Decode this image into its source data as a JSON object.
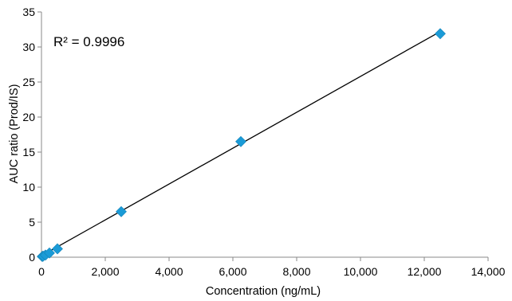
{
  "chart_data": {
    "type": "scatter",
    "title": "",
    "xlabel": "Concentration (ng/mL)",
    "ylabel": "AUC ratio (Prod/IS)",
    "xlim": [
      0,
      14000
    ],
    "ylim": [
      0,
      35
    ],
    "x_ticks": [
      0,
      2000,
      4000,
      6000,
      8000,
      10000,
      12000,
      14000
    ],
    "x_tick_labels": [
      "0",
      "2,000",
      "4,000",
      "6,000",
      "8,000",
      "10,000",
      "12,000",
      "14,000"
    ],
    "y_ticks": [
      0,
      5,
      10,
      15,
      20,
      25,
      30,
      35
    ],
    "y_tick_labels": [
      "0",
      "5",
      "10",
      "15",
      "20",
      "25",
      "30",
      "35"
    ],
    "grid": false,
    "legend": "none",
    "annotation": "R² = 0.9996",
    "marker": "diamond",
    "marker_color": "#1a9bd7",
    "trendline": {
      "type": "linear",
      "color": "#000000",
      "x_range": [
        0,
        12500
      ],
      "y_range": [
        0.2,
        32.2
      ]
    },
    "series": [
      {
        "x": [
          25,
          50,
          125,
          250,
          500,
          2500,
          6250,
          12500
        ],
        "y": [
          0.1,
          0.15,
          0.3,
          0.6,
          1.2,
          6.5,
          16.5,
          31.9
        ]
      }
    ]
  }
}
